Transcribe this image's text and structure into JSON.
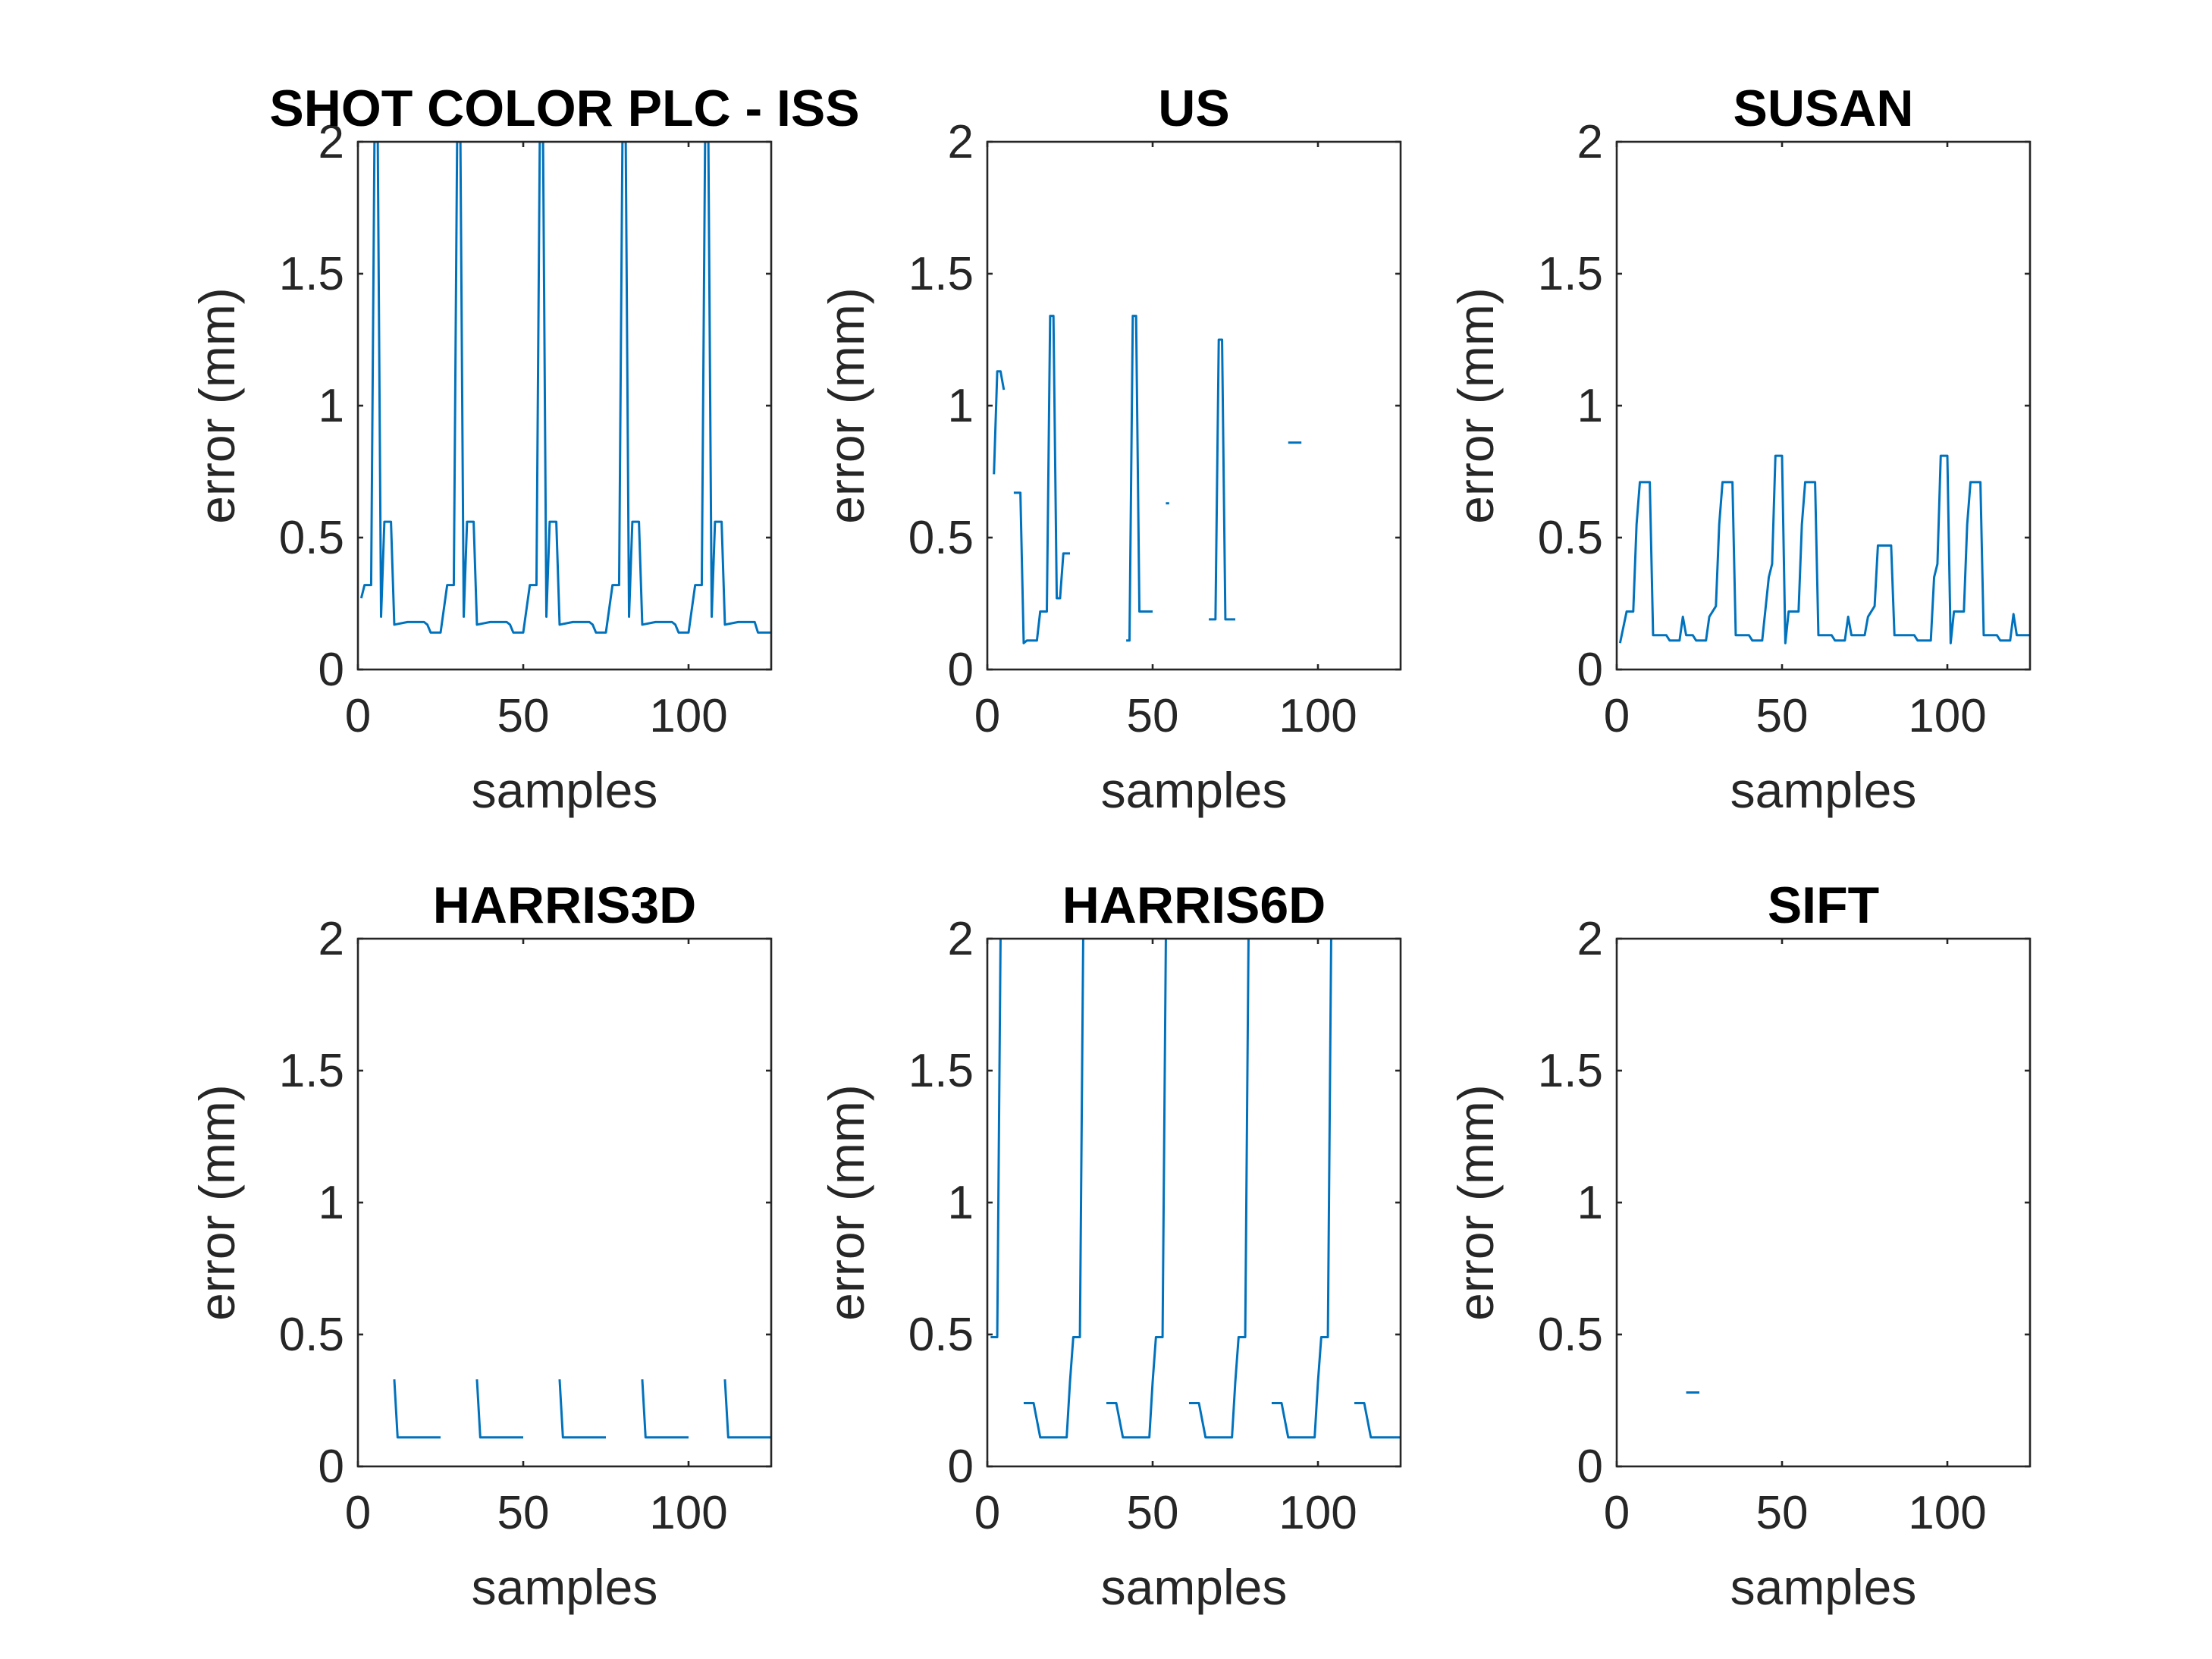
{
  "chart_data": [
    {
      "type": "line",
      "title": "SHOT COLOR PLC - ISS",
      "xlabel": "samples",
      "ylabel": "error (mm)",
      "xlim": [
        0,
        125
      ],
      "ylim": [
        0,
        2
      ],
      "xticks": [
        0,
        50,
        100
      ],
      "yticks": [
        0,
        0.5,
        1,
        1.5,
        2
      ],
      "grid": false,
      "color": "#0072BD",
      "segments": [
        [
          [
            1,
            0.27
          ],
          [
            2,
            0.32
          ],
          [
            3,
            0.32
          ],
          [
            4,
            0.32
          ],
          [
            5,
            2.0
          ],
          [
            6,
            2.0
          ],
          [
            7,
            0.2
          ],
          [
            8,
            0.56
          ],
          [
            9,
            0.56
          ],
          [
            10,
            0.56
          ],
          [
            11,
            0.17
          ],
          [
            15,
            0.18
          ],
          [
            20,
            0.18
          ],
          [
            21,
            0.17
          ],
          [
            22,
            0.14
          ],
          [
            25,
            0.14
          ],
          [
            26,
            0.23
          ],
          [
            27,
            0.32
          ],
          [
            29,
            0.32
          ],
          [
            30,
            2.0
          ],
          [
            31,
            2.0
          ],
          [
            32,
            0.2
          ],
          [
            33,
            0.56
          ],
          [
            35,
            0.56
          ],
          [
            36,
            0.17
          ],
          [
            40,
            0.18
          ],
          [
            45,
            0.18
          ],
          [
            46,
            0.17
          ],
          [
            47,
            0.14
          ],
          [
            50,
            0.14
          ],
          [
            51,
            0.23
          ],
          [
            52,
            0.32
          ],
          [
            54,
            0.32
          ],
          [
            55,
            2.0
          ],
          [
            56,
            2.0
          ],
          [
            57,
            0.2
          ],
          [
            58,
            0.56
          ],
          [
            60,
            0.56
          ],
          [
            61,
            0.17
          ],
          [
            65,
            0.18
          ],
          [
            70,
            0.18
          ],
          [
            71,
            0.17
          ],
          [
            72,
            0.14
          ],
          [
            75,
            0.14
          ],
          [
            76,
            0.23
          ],
          [
            77,
            0.32
          ],
          [
            79,
            0.32
          ],
          [
            80,
            2.0
          ],
          [
            81,
            2.0
          ],
          [
            82,
            0.2
          ],
          [
            83,
            0.56
          ],
          [
            85,
            0.56
          ],
          [
            86,
            0.17
          ],
          [
            90,
            0.18
          ],
          [
            95,
            0.18
          ],
          [
            96,
            0.17
          ],
          [
            97,
            0.14
          ],
          [
            100,
            0.14
          ],
          [
            101,
            0.23
          ],
          [
            102,
            0.32
          ],
          [
            104,
            0.32
          ],
          [
            105,
            2.0
          ],
          [
            106,
            2.0
          ],
          [
            107,
            0.2
          ],
          [
            108,
            0.56
          ],
          [
            110,
            0.56
          ],
          [
            111,
            0.17
          ],
          [
            115,
            0.18
          ],
          [
            120,
            0.18
          ],
          [
            121,
            0.14
          ],
          [
            125,
            0.14
          ]
        ]
      ]
    },
    {
      "type": "line",
      "title": "US",
      "xlabel": "samples",
      "ylabel": "error (mm)",
      "xlim": [
        0,
        125
      ],
      "ylim": [
        0,
        2
      ],
      "xticks": [
        0,
        50,
        100
      ],
      "yticks": [
        0,
        0.5,
        1,
        1.5,
        2
      ],
      "grid": false,
      "color": "#0072BD",
      "segments": [
        [
          [
            2,
            0.74
          ],
          [
            3,
            1.13
          ],
          [
            4,
            1.13
          ],
          [
            5,
            1.06
          ]
        ],
        [
          [
            8,
            0.67
          ],
          [
            10,
            0.67
          ],
          [
            11,
            0.1
          ],
          [
            12,
            0.11
          ],
          [
            15,
            0.11
          ],
          [
            16,
            0.22
          ],
          [
            18,
            0.22
          ],
          [
            19,
            1.34
          ],
          [
            20,
            1.34
          ],
          [
            21,
            0.27
          ],
          [
            22,
            0.27
          ],
          [
            23,
            0.44
          ],
          [
            25,
            0.44
          ]
        ],
        [
          [
            42,
            0.11
          ],
          [
            43,
            0.11
          ],
          [
            44,
            1.34
          ],
          [
            45,
            1.34
          ],
          [
            46,
            0.22
          ],
          [
            50,
            0.22
          ]
        ],
        [
          [
            54,
            0.63
          ],
          [
            55,
            0.63
          ]
        ],
        [
          [
            67,
            0.19
          ],
          [
            69,
            0.19
          ],
          [
            70,
            1.25
          ],
          [
            71,
            1.25
          ],
          [
            72,
            0.19
          ],
          [
            75,
            0.19
          ]
        ],
        [
          [
            91,
            0.86
          ],
          [
            95,
            0.86
          ]
        ]
      ]
    },
    {
      "type": "line",
      "title": "SUSAN",
      "xlabel": "samples",
      "ylabel": "error (mm)",
      "xlim": [
        0,
        125
      ],
      "ylim": [
        0,
        2
      ],
      "xticks": [
        0,
        50,
        100
      ],
      "yticks": [
        0,
        0.5,
        1,
        1.5,
        2
      ],
      "grid": false,
      "color": "#0072BD",
      "segments": [
        [
          [
            1,
            0.1
          ],
          [
            2,
            0.16
          ],
          [
            3,
            0.22
          ],
          [
            5,
            0.22
          ],
          [
            6,
            0.55
          ],
          [
            7,
            0.71
          ],
          [
            10,
            0.71
          ],
          [
            11,
            0.13
          ],
          [
            15,
            0.13
          ],
          [
            16,
            0.11
          ],
          [
            19,
            0.11
          ],
          [
            20,
            0.2
          ],
          [
            21,
            0.13
          ],
          [
            22,
            0.13
          ],
          [
            23,
            0.13
          ],
          [
            24,
            0.11
          ],
          [
            27,
            0.11
          ],
          [
            28,
            0.2
          ],
          [
            30,
            0.24
          ],
          [
            31,
            0.55
          ],
          [
            32,
            0.71
          ],
          [
            35,
            0.71
          ],
          [
            36,
            0.13
          ],
          [
            40,
            0.13
          ],
          [
            41,
            0.11
          ],
          [
            44,
            0.11
          ],
          [
            46,
            0.35
          ],
          [
            47,
            0.4
          ],
          [
            48,
            0.81
          ],
          [
            50,
            0.81
          ],
          [
            51,
            0.1
          ],
          [
            52,
            0.22
          ],
          [
            55,
            0.22
          ],
          [
            56,
            0.55
          ],
          [
            57,
            0.71
          ],
          [
            60,
            0.71
          ],
          [
            61,
            0.13
          ],
          [
            65,
            0.13
          ],
          [
            66,
            0.11
          ],
          [
            69,
            0.11
          ],
          [
            70,
            0.2
          ],
          [
            71,
            0.13
          ],
          [
            75,
            0.13
          ],
          [
            76,
            0.2
          ],
          [
            78,
            0.24
          ],
          [
            79,
            0.47
          ],
          [
            83,
            0.47
          ],
          [
            84,
            0.13
          ],
          [
            90,
            0.13
          ],
          [
            91,
            0.11
          ],
          [
            95,
            0.11
          ],
          [
            96,
            0.35
          ],
          [
            97,
            0.4
          ],
          [
            98,
            0.81
          ],
          [
            100,
            0.81
          ],
          [
            101,
            0.1
          ],
          [
            102,
            0.22
          ],
          [
            105,
            0.22
          ],
          [
            106,
            0.55
          ],
          [
            107,
            0.71
          ],
          [
            110,
            0.71
          ],
          [
            111,
            0.13
          ],
          [
            115,
            0.13
          ],
          [
            116,
            0.11
          ],
          [
            119,
            0.11
          ],
          [
            120,
            0.21
          ],
          [
            121,
            0.13
          ],
          [
            125,
            0.13
          ]
        ]
      ]
    },
    {
      "type": "line",
      "title": "HARRIS3D",
      "xlabel": "samples",
      "ylabel": "error (mm)",
      "xlim": [
        0,
        125
      ],
      "ylim": [
        0,
        2
      ],
      "xticks": [
        0,
        50,
        100
      ],
      "yticks": [
        0,
        0.5,
        1,
        1.5,
        2
      ],
      "grid": false,
      "color": "#0072BD",
      "segments": [
        [
          [
            11,
            0.33
          ],
          [
            12,
            0.11
          ],
          [
            25,
            0.11
          ]
        ],
        [
          [
            36,
            0.33
          ],
          [
            37,
            0.11
          ],
          [
            50,
            0.11
          ]
        ],
        [
          [
            61,
            0.33
          ],
          [
            62,
            0.11
          ],
          [
            75,
            0.11
          ]
        ],
        [
          [
            86,
            0.33
          ],
          [
            87,
            0.11
          ],
          [
            100,
            0.11
          ]
        ],
        [
          [
            111,
            0.33
          ],
          [
            112,
            0.11
          ],
          [
            125,
            0.11
          ]
        ]
      ]
    },
    {
      "type": "line",
      "title": "HARRIS6D",
      "xlabel": "samples",
      "ylabel": "error (mm)",
      "xlim": [
        0,
        125
      ],
      "ylim": [
        0,
        2
      ],
      "xticks": [
        0,
        50,
        100
      ],
      "yticks": [
        0,
        0.5,
        1,
        1.5,
        2
      ],
      "grid": false,
      "color": "#0072BD",
      "segments": [
        [
          [
            1,
            0.49
          ],
          [
            3,
            0.49
          ],
          [
            4,
            2.0
          ]
        ],
        [
          [
            11,
            0.24
          ],
          [
            14,
            0.24
          ],
          [
            16,
            0.11
          ],
          [
            24,
            0.11
          ],
          [
            25,
            0.32
          ],
          [
            26,
            0.49
          ],
          [
            28,
            0.49
          ],
          [
            29,
            2.0
          ]
        ],
        [
          [
            36,
            0.24
          ],
          [
            39,
            0.24
          ],
          [
            41,
            0.11
          ],
          [
            49,
            0.11
          ],
          [
            50,
            0.32
          ],
          [
            51,
            0.49
          ],
          [
            53,
            0.49
          ],
          [
            54,
            2.0
          ]
        ],
        [
          [
            61,
            0.24
          ],
          [
            64,
            0.24
          ],
          [
            66,
            0.11
          ],
          [
            74,
            0.11
          ],
          [
            75,
            0.32
          ],
          [
            76,
            0.49
          ],
          [
            78,
            0.49
          ],
          [
            79,
            2.0
          ]
        ],
        [
          [
            86,
            0.24
          ],
          [
            89,
            0.24
          ],
          [
            91,
            0.11
          ],
          [
            99,
            0.11
          ],
          [
            100,
            0.32
          ],
          [
            101,
            0.49
          ],
          [
            103,
            0.49
          ],
          [
            104,
            2.0
          ]
        ],
        [
          [
            111,
            0.24
          ],
          [
            114,
            0.24
          ],
          [
            116,
            0.11
          ],
          [
            125,
            0.11
          ]
        ]
      ]
    },
    {
      "type": "line",
      "title": "SIFT",
      "xlabel": "samples",
      "ylabel": "error (mm)",
      "xlim": [
        0,
        125
      ],
      "ylim": [
        0,
        2
      ],
      "xticks": [
        0,
        50,
        100
      ],
      "yticks": [
        0,
        0.5,
        1,
        1.5,
        2
      ],
      "grid": false,
      "color": "#0072BD",
      "segments": [
        [
          [
            21,
            0.28
          ],
          [
            25,
            0.28
          ]
        ]
      ]
    }
  ]
}
